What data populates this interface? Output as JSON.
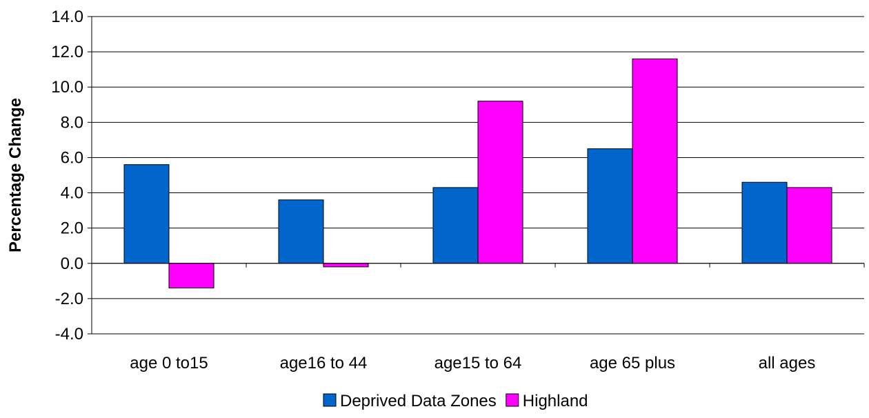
{
  "colors": {
    "Deprived Data Zones": "#0066cc",
    "Highland": "#ff00ff",
    "gridline": "#000000",
    "background": "#ffffff"
  },
  "chart_data": {
    "type": "bar",
    "title": "",
    "xlabel": "",
    "ylabel": "Percentage Change",
    "categories": [
      "age 0 to15",
      "age16 to 44",
      "age15 to 64",
      "age 65 plus",
      "all ages"
    ],
    "series": [
      {
        "name": "Deprived Data Zones",
        "values": [
          5.6,
          3.6,
          4.3,
          6.5,
          4.6
        ]
      },
      {
        "name": "Highland",
        "values": [
          -1.4,
          -0.2,
          9.2,
          11.6,
          4.3
        ]
      }
    ],
    "ylim": [
      -4.0,
      14.0
    ],
    "yticks": [
      -4.0,
      -2.0,
      0.0,
      2.0,
      4.0,
      6.0,
      8.0,
      10.0,
      12.0,
      14.0
    ],
    "ytick_labels": [
      "-4.0",
      "-2.0",
      "0.0",
      "2.0",
      "4.0",
      "6.0",
      "8.0",
      "10.0",
      "12.0",
      "14.0"
    ],
    "grid": true,
    "legend_position": "bottom"
  }
}
